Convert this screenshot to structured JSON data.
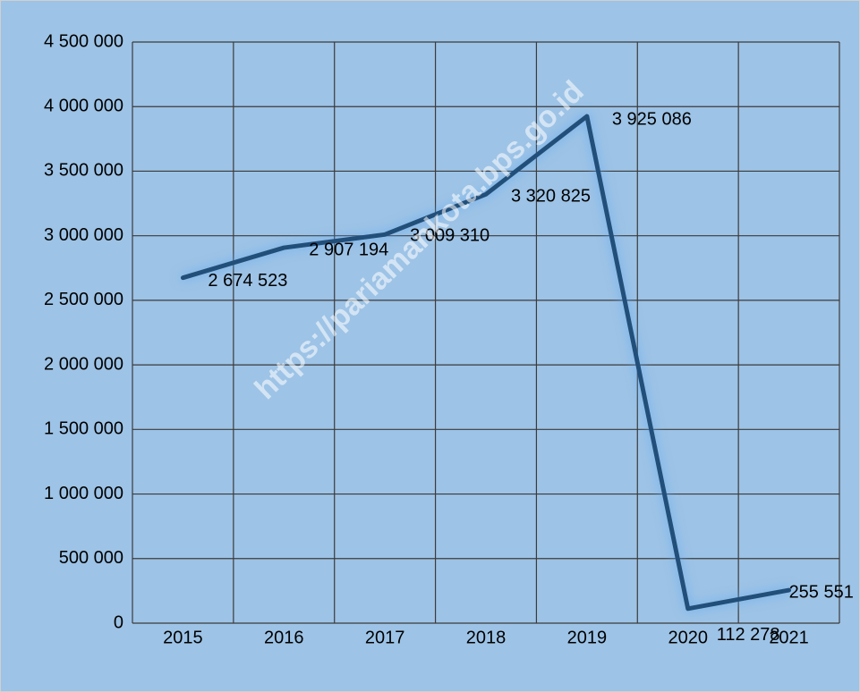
{
  "chart_data": {
    "type": "line",
    "categories": [
      "2015",
      "2016",
      "2017",
      "2018",
      "2019",
      "2020",
      "2021"
    ],
    "series": [
      {
        "color": "#24507a",
        "values": [
          2674523,
          2907194,
          3009310,
          3320825,
          3925086,
          112278,
          255551
        ],
        "value_labels": [
          "2 674 523",
          "2 907 194",
          "3 009 310",
          "3 320 825",
          "3 925 086",
          "112 278",
          "255 551"
        ]
      }
    ],
    "ylim": [
      0,
      4500000
    ],
    "yticks": [
      0,
      {
        "value": 500000,
        "label": "500 000"
      },
      {
        "value": 1000000,
        "label": "1 000 000"
      },
      {
        "value": 1500000,
        "label": "1 500 000"
      },
      {
        "value": 2000000,
        "label": "2 000 000"
      },
      {
        "value": 2500000,
        "label": "2 500 000"
      },
      {
        "value": 3000000,
        "label": "3 000 000"
      },
      {
        "value": 3500000,
        "label": "3 500 000"
      },
      {
        "value": 4000000,
        "label": "4 000 000"
      },
      {
        "value": 4500000,
        "label": "4 500 000"
      }
    ],
    "grid": true,
    "background": "#9dc3e6",
    "watermark": "https://pariamankota.bps.go.id"
  }
}
